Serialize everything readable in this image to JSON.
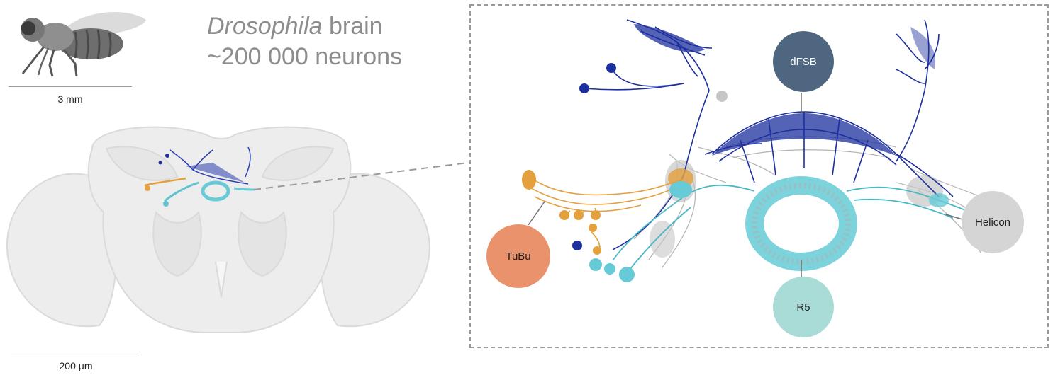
{
  "title": {
    "italic": "Drosophila",
    "rest": " brain",
    "line2": "~200 000 neurons"
  },
  "fly_scale": "3 mm",
  "brain_scale": "200 μm",
  "labels": {
    "dfsb": "dFSB",
    "tubu": "TuBu",
    "helicon": "Helicon",
    "r5": "R5"
  },
  "colors": {
    "dfsb": "#4e6680",
    "tubu": "#e9926c",
    "helicon": "#d5d5d5",
    "r5": "#a9dbd7",
    "navy": "#1c2f9e",
    "orange": "#e3a03c",
    "cyan": "#66cbd6",
    "grey": "#b4b4b4"
  }
}
